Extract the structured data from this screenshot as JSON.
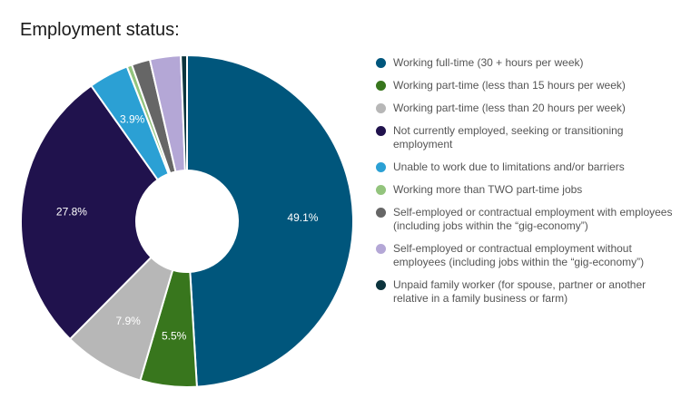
{
  "chart_data": {
    "type": "pie",
    "title": "Employment status:",
    "donut": true,
    "legend_position": "right",
    "categories": [
      "Working full-time (30 + hours per week)",
      "Working part-time (less than 15 hours per week)",
      "Working part-time (less than 20 hours per week)",
      "Not currently employed, seeking or transitioning employment",
      "Unable to work due to limitations and/or barriers",
      "Working more than TWO part-time jobs",
      "Self-employed or contractual employment with employees (including jobs within the “gig-economy”)",
      "Self-employed or contractual employment without employees (including jobs within the “gig-economy”)",
      "Unpaid family worker (for spouse, partner or another relative in a family business or farm)"
    ],
    "values": [
      49.1,
      5.5,
      7.9,
      27.8,
      3.9,
      0.5,
      1.8,
      3.0,
      0.6
    ],
    "data_labels": [
      "49.1%",
      "5.5%",
      "7.9%",
      "27.8%",
      "3.9%",
      "",
      "",
      "",
      ""
    ],
    "colors": [
      "#00567c",
      "#38761d",
      "#b7b7b7",
      "#20124d",
      "#2ba0d4",
      "#93c47d",
      "#666666",
      "#b4a7d6",
      "#0c343d"
    ]
  }
}
